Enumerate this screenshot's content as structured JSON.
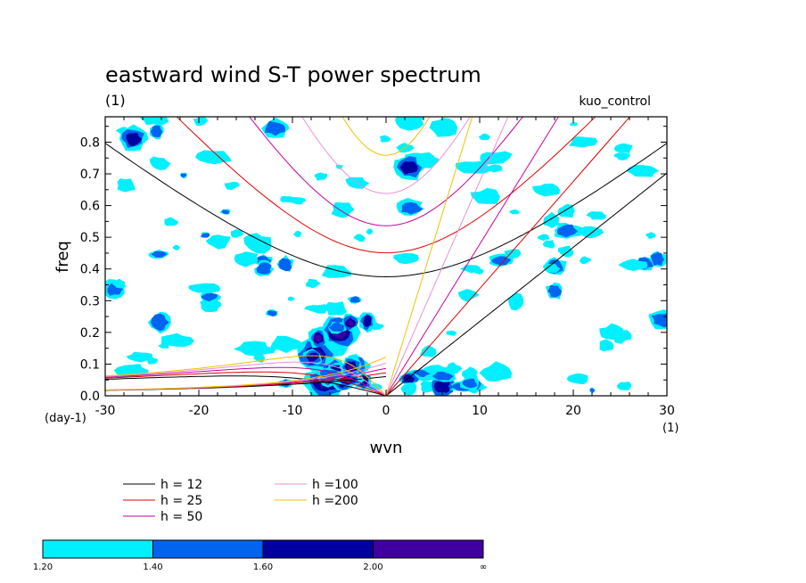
{
  "chart_data": {
    "type": "contour",
    "title": "eastward wind S-T power spectrum",
    "subtitle_left": "(1)",
    "subtitle_right": "kuo_control",
    "xlabel": "wvn",
    "ylabel": "freq",
    "x_unit": "(1)",
    "y_unit": "(day-1)",
    "xlim": [
      -30,
      30
    ],
    "ylim": [
      0,
      0.88
    ],
    "x_ticks": [
      -30,
      -20,
      -10,
      0,
      10,
      20,
      30
    ],
    "x_tick_labels": [
      "-30",
      "-20",
      "-10",
      "0",
      "10",
      "20",
      "30"
    ],
    "y_ticks": [
      0.0,
      0.1,
      0.2,
      0.3,
      0.4,
      0.5,
      0.6,
      0.7,
      0.8
    ],
    "y_tick_labels": [
      "0.0",
      "0.1",
      "0.2",
      "0.3",
      "0.4",
      "0.5",
      "0.6",
      "0.7",
      "0.8"
    ],
    "dispersion_curves": [
      {
        "label": "h = 12",
        "h": 12,
        "color": "#000000"
      },
      {
        "label": "h = 25",
        "h": 25,
        "color": "#e00000"
      },
      {
        "label": "h = 50",
        "h": 50,
        "color": "#c800a0"
      },
      {
        "label": "h =100",
        "h": 100,
        "color": "#e890d8"
      },
      {
        "label": "h =200",
        "h": 200,
        "color": "#f0c000"
      }
    ],
    "contour_levels": [
      "1.20",
      "1.40",
      "1.60",
      "2.00",
      "∞"
    ],
    "contour_colors": [
      "#00f0ff",
      "#0064f0",
      "#0000a0",
      "#4000a0"
    ],
    "power_blobs": [
      {
        "wvn": -7.5,
        "freq": 0.13,
        "level": 4
      },
      {
        "wvn": -6.5,
        "freq": 0.04,
        "level": 4
      },
      {
        "wvn": -5.0,
        "freq": 0.2,
        "level": 4
      },
      {
        "wvn": -5.5,
        "freq": 0.08,
        "level": 3
      },
      {
        "wvn": 6.0,
        "freq": 0.03,
        "level": 3
      },
      {
        "wvn": -27,
        "freq": 0.81,
        "level": 3
      },
      {
        "wvn": 2.5,
        "freq": 0.72,
        "level": 3
      },
      {
        "wvn": -13,
        "freq": 0.4,
        "level": 2
      },
      {
        "wvn": 18,
        "freq": 0.33,
        "level": 2
      },
      {
        "wvn": 29,
        "freq": 0.43,
        "level": 2
      }
    ]
  }
}
